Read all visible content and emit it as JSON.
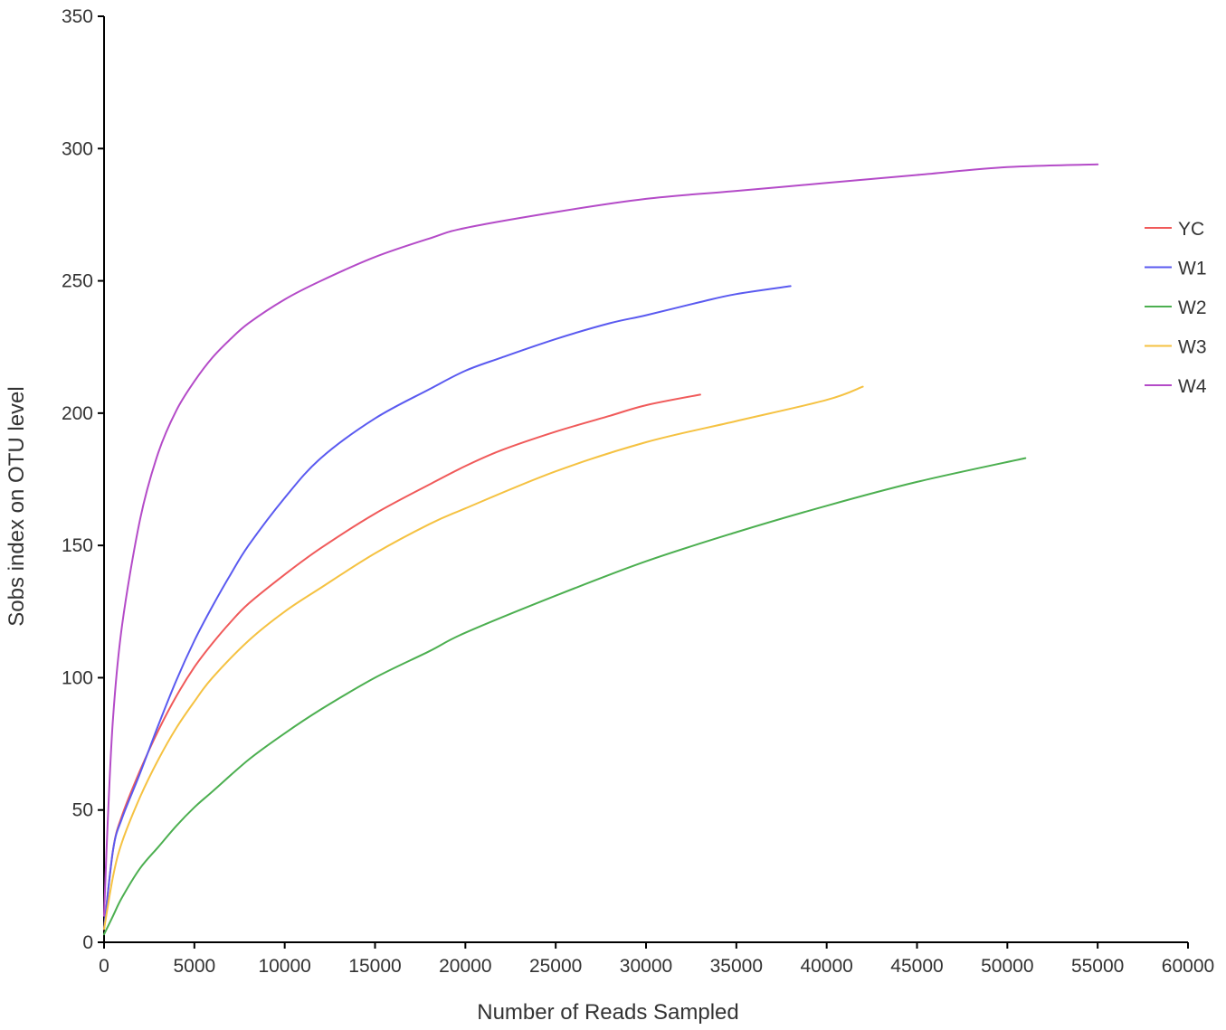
{
  "chart_data": {
    "type": "line",
    "title": "",
    "xlabel": "Number of Reads Sampled",
    "ylabel": "Sobs index on OTU level",
    "xlim": [
      0,
      60000
    ],
    "ylim": [
      0,
      350
    ],
    "x_ticks": [
      0,
      5000,
      10000,
      15000,
      20000,
      25000,
      30000,
      35000,
      40000,
      45000,
      50000,
      55000,
      60000
    ],
    "y_ticks": [
      0,
      50,
      100,
      150,
      200,
      250,
      300,
      350
    ],
    "grid": false,
    "legend_position": "right",
    "series": [
      {
        "name": "YC",
        "color": "#f05a5a",
        "x": [
          0,
          500,
          1000,
          2000,
          3000,
          4000,
          5000,
          6000,
          7000,
          8000,
          10000,
          12000,
          15000,
          18000,
          20000,
          22000,
          25000,
          28000,
          30000,
          33000
        ],
        "y": [
          5,
          35,
          48,
          65,
          80,
          93,
          104,
          113,
          121,
          128,
          139,
          149,
          162,
          173,
          180,
          186,
          193,
          199,
          203,
          207
        ]
      },
      {
        "name": "W1",
        "color": "#5a5af0",
        "x": [
          0,
          500,
          1000,
          2000,
          3000,
          4000,
          5000,
          6000,
          7000,
          8000,
          10000,
          12000,
          15000,
          18000,
          20000,
          22000,
          25000,
          28000,
          30000,
          33000,
          35000,
          38000
        ],
        "y": [
          5,
          35,
          47,
          64,
          82,
          99,
          114,
          127,
          139,
          150,
          168,
          183,
          198,
          209,
          216,
          221,
          228,
          234,
          237,
          242,
          245,
          248
        ]
      },
      {
        "name": "W2",
        "color": "#4caf50",
        "x": [
          0,
          500,
          1000,
          2000,
          3000,
          4000,
          5000,
          6000,
          8000,
          10000,
          12000,
          15000,
          18000,
          20000,
          25000,
          30000,
          35000,
          40000,
          45000,
          51000
        ],
        "y": [
          3,
          10,
          17,
          28,
          36,
          44,
          51,
          57,
          69,
          79,
          88,
          100,
          110,
          117,
          131,
          144,
          155,
          165,
          174,
          183
        ]
      },
      {
        "name": "W3",
        "color": "#f5c242",
        "x": [
          0,
          500,
          1000,
          2000,
          3000,
          4000,
          5000,
          6000,
          8000,
          10000,
          12000,
          15000,
          18000,
          20000,
          25000,
          30000,
          35000,
          40000,
          42000
        ],
        "y": [
          5,
          25,
          38,
          55,
          69,
          81,
          91,
          100,
          114,
          125,
          134,
          147,
          158,
          164,
          178,
          189,
          197,
          205,
          210
        ]
      },
      {
        "name": "W4",
        "color": "#b44bc8",
        "x": [
          0,
          200,
          500,
          1000,
          2000,
          3000,
          4000,
          5000,
          6000,
          7000,
          8000,
          10000,
          12000,
          15000,
          18000,
          20000,
          25000,
          30000,
          35000,
          40000,
          45000,
          50000,
          55000
        ],
        "y": [
          10,
          45,
          85,
          120,
          160,
          185,
          201,
          212,
          221,
          228,
          234,
          243,
          250,
          259,
          266,
          270,
          276,
          281,
          284,
          287,
          290,
          293,
          294
        ]
      }
    ]
  }
}
